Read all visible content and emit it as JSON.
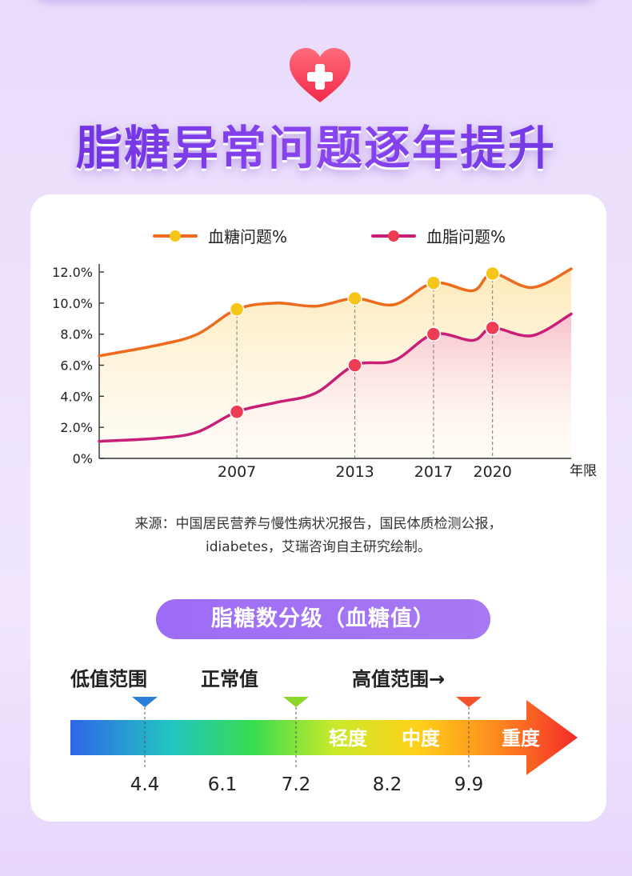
{
  "page": {
    "title": "脂糖异常问题逐年提升",
    "source_line1": "来源：中国居民营养与慢性病状况报告，国民体质检测公报，",
    "source_line2": "idiabetes，艾瑞咨询自主研究绘制。"
  },
  "colors": {
    "glucose": "#ee6a1c",
    "glucose_point": "#f6c51a",
    "lipid": "#c81e78",
    "lipid_point": "#ec3d55",
    "accent": "#9d6cf6"
  },
  "chart_data": {
    "type": "line",
    "x_range": [
      2000,
      2024
    ],
    "ylim": [
      0,
      12
    ],
    "y_ticks": [
      "0%",
      "2.0%",
      "4.0%",
      "6.0%",
      "8.0%",
      "10.0%",
      "12.0%"
    ],
    "x_ticks": [
      "2007",
      "2013",
      "2017",
      "2020"
    ],
    "x_unit_label": "年限",
    "legend_position": "top",
    "series": [
      {
        "name": "血糖问题%",
        "x": [
          2000,
          2003,
          2005,
          2007,
          2009,
          2011,
          2013,
          2015,
          2017,
          2019,
          2020,
          2022,
          2024
        ],
        "values": [
          6.6,
          7.3,
          8.0,
          9.6,
          10.0,
          9.8,
          10.3,
          9.9,
          11.3,
          10.8,
          11.9,
          11.0,
          12.2
        ],
        "markers": [
          [
            2007,
            9.6
          ],
          [
            2013,
            10.3
          ],
          [
            2017,
            11.3
          ],
          [
            2020,
            11.9
          ]
        ]
      },
      {
        "name": "血脂问题%",
        "x": [
          2000,
          2003,
          2005,
          2007,
          2009,
          2011,
          2013,
          2015,
          2017,
          2019,
          2020,
          2022,
          2024
        ],
        "values": [
          1.1,
          1.3,
          1.7,
          3.0,
          3.6,
          4.2,
          6.0,
          6.3,
          8.0,
          7.6,
          8.4,
          7.9,
          9.3
        ],
        "markers": [
          [
            2007,
            3.0
          ],
          [
            2013,
            6.0
          ],
          [
            2017,
            8.0
          ],
          [
            2020,
            8.4
          ]
        ]
      }
    ]
  },
  "grading": {
    "title": "脂糖数分级（血糖值）",
    "zones": [
      "低值范围",
      "正常值",
      "高值范围→"
    ],
    "severity": [
      "轻度",
      "中度",
      "重度"
    ],
    "scale_values": [
      "4.4",
      "6.1",
      "7.2",
      "8.2",
      "9.9"
    ],
    "marker_colors": [
      "#2b7fd6",
      "#8ad62a",
      "#f2532a"
    ]
  }
}
